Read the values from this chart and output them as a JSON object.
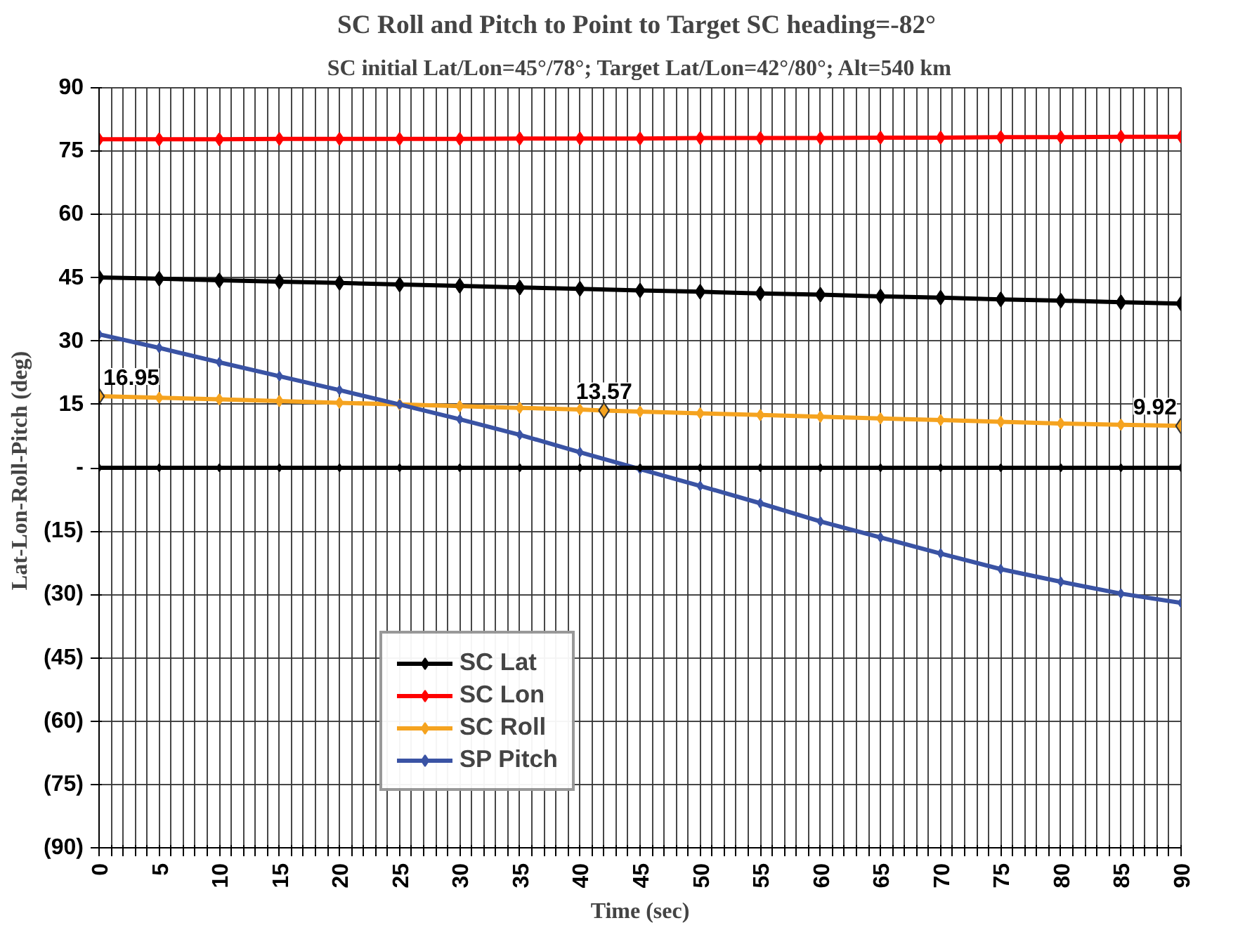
{
  "chart_data": {
    "type": "line",
    "title": "SC Roll and Pitch to Point to Target  SC heading=-82°",
    "subtitle": "SC initial Lat/Lon=45°/78°; Target Lat/Lon=42°/80°; Alt=540 km",
    "xlabel": "Time (sec)",
    "ylabel": "Lat-Lon-Roll-Pitch  (deg)",
    "x": [
      0,
      5,
      10,
      15,
      20,
      25,
      30,
      35,
      40,
      45,
      50,
      55,
      60,
      65,
      70,
      75,
      80,
      85,
      90
    ],
    "series": [
      {
        "name": "SC Lat",
        "color": "#000000",
        "values": [
          45.1,
          44.8,
          44.4,
          44.1,
          43.8,
          43.4,
          43.1,
          42.7,
          42.4,
          42.0,
          41.7,
          41.3,
          41.0,
          40.6,
          40.3,
          39.9,
          39.6,
          39.2,
          38.9
        ]
      },
      {
        "name": "SC Lon",
        "color": "#ff0000",
        "values": [
          77.8,
          77.8,
          77.8,
          77.9,
          77.9,
          77.9,
          77.9,
          78.0,
          78.0,
          78.0,
          78.1,
          78.1,
          78.1,
          78.2,
          78.2,
          78.3,
          78.3,
          78.4,
          78.4
        ]
      },
      {
        "name": "SC Roll",
        "color": "#f5a31f",
        "x": [
          0,
          5,
          10,
          15,
          20,
          25,
          30,
          35,
          40,
          42,
          45,
          50,
          55,
          60,
          65,
          70,
          75,
          80,
          85,
          90
        ],
        "values": [
          16.95,
          16.6,
          16.2,
          15.8,
          15.4,
          15.0,
          14.6,
          14.2,
          13.8,
          13.57,
          13.3,
          12.9,
          12.5,
          12.1,
          11.7,
          11.3,
          10.9,
          10.5,
          10.2,
          9.92
        ],
        "value_labels": [
          "16.95",
          null,
          null,
          null,
          null,
          null,
          null,
          null,
          null,
          "13.57",
          null,
          null,
          null,
          null,
          null,
          null,
          null,
          null,
          null,
          "9.92"
        ]
      },
      {
        "name": "SP Pitch",
        "color": "#3a53a4",
        "values": [
          31.6,
          28.4,
          25.0,
          21.7,
          18.4,
          15.0,
          11.5,
          7.8,
          3.7,
          -0.3,
          -4.3,
          -8.4,
          -12.7,
          -16.5,
          -20.3,
          -24.0,
          -27.0,
          -29.8,
          -32.0
        ]
      },
      {
        "color": "#000000",
        "values": [
          0,
          0,
          0,
          0,
          0,
          0,
          0,
          0,
          0,
          0,
          0,
          0,
          0,
          0,
          0,
          0,
          0,
          0,
          0
        ]
      }
    ],
    "xlim": [
      0,
      90
    ],
    "xticks": [
      0,
      {
        "value": 1,
        "label": null
      },
      {
        "value": 2,
        "label": null
      },
      {
        "value": 3,
        "label": null
      },
      {
        "value": 4,
        "label": null
      },
      5,
      {
        "value": 6,
        "label": null
      },
      {
        "value": 7,
        "label": null
      },
      {
        "value": 8,
        "label": null
      },
      {
        "value": 9,
        "label": null
      },
      10,
      {
        "value": 11,
        "label": null
      },
      {
        "value": 12,
        "label": null
      },
      {
        "value": 13,
        "label": null
      },
      {
        "value": 14,
        "label": null
      },
      15,
      {
        "value": 16,
        "label": null
      },
      {
        "value": 17,
        "label": null
      },
      {
        "value": 18,
        "label": null
      },
      {
        "value": 19,
        "label": null
      },
      20,
      {
        "value": 21,
        "label": null
      },
      {
        "value": 22,
        "label": null
      },
      {
        "value": 23,
        "label": null
      },
      {
        "value": 24,
        "label": null
      },
      25,
      {
        "value": 26,
        "label": null
      },
      {
        "value": 27,
        "label": null
      },
      {
        "value": 28,
        "label": null
      },
      {
        "value": 29,
        "label": null
      },
      30,
      {
        "value": 31,
        "label": null
      },
      {
        "value": 32,
        "label": null
      },
      {
        "value": 33,
        "label": null
      },
      {
        "value": 34,
        "label": null
      },
      35,
      {
        "value": 36,
        "label": null
      },
      {
        "value": 37,
        "label": null
      },
      {
        "value": 38,
        "label": null
      },
      {
        "value": 39,
        "label": null
      },
      40,
      {
        "value": 41,
        "label": null
      },
      {
        "value": 42,
        "label": null
      },
      {
        "value": 43,
        "label": null
      },
      {
        "value": 44,
        "label": null
      },
      45,
      {
        "value": 46,
        "label": null
      },
      {
        "value": 47,
        "label": null
      },
      {
        "value": 48,
        "label": null
      },
      {
        "value": 49,
        "label": null
      },
      50,
      {
        "value": 51,
        "label": null
      },
      {
        "value": 52,
        "label": null
      },
      {
        "value": 53,
        "label": null
      },
      {
        "value": 54,
        "label": null
      },
      55,
      {
        "value": 56,
        "label": null
      },
      {
        "value": 57,
        "label": null
      },
      {
        "value": 58,
        "label": null
      },
      {
        "value": 59,
        "label": null
      },
      60,
      {
        "value": 61,
        "label": null
      },
      {
        "value": 62,
        "label": null
      },
      {
        "value": 63,
        "label": null
      },
      {
        "value": 64,
        "label": null
      },
      65,
      {
        "value": 66,
        "label": null
      },
      {
        "value": 67,
        "label": null
      },
      {
        "value": 68,
        "label": null
      },
      {
        "value": 69,
        "label": null
      },
      70,
      {
        "value": 71,
        "label": null
      },
      {
        "value": 72,
        "label": null
      },
      {
        "value": 73,
        "label": null
      },
      {
        "value": 74,
        "label": null
      },
      75,
      {
        "value": 76,
        "label": null
      },
      {
        "value": 77,
        "label": null
      },
      {
        "value": 78,
        "label": null
      },
      {
        "value": 79,
        "label": null
      },
      80,
      {
        "value": 81,
        "label": null
      },
      {
        "value": 82,
        "label": null
      },
      {
        "value": 83,
        "label": null
      },
      {
        "value": 84,
        "label": null
      },
      85,
      {
        "value": 86,
        "label": null
      },
      {
        "value": 87,
        "label": null
      },
      {
        "value": 88,
        "label": null
      },
      {
        "value": 89,
        "label": null
      },
      90
    ],
    "ylim": [
      -90,
      90
    ],
    "yticks": [
      {
        "value": -90,
        "label": "(90)"
      },
      {
        "value": -75,
        "label": "(75)"
      },
      {
        "value": -60,
        "label": "(60)"
      },
      {
        "value": -45,
        "label": "(45)"
      },
      {
        "value": -30,
        "label": "(30)"
      },
      {
        "value": -15,
        "label": "(15)"
      },
      {
        "value": 0,
        "label": "-"
      },
      15,
      30,
      45,
      60,
      75,
      90
    ],
    "grid": true,
    "legend": "bottom left",
    "marker": "diamond",
    "line_style": "solid"
  }
}
